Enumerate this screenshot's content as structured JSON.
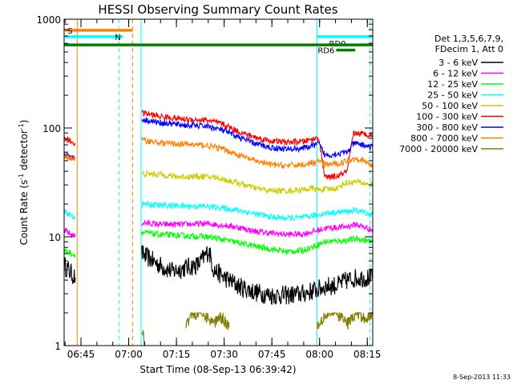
{
  "chart_data": {
    "type": "line",
    "title": "HESSI Observing Summary Count Rates",
    "xlabel": "Start Time (08-Sep-13 06:39:42)",
    "ylabel_main": "Count Rate (s",
    "ylabel_sup1": "-1",
    "ylabel_mid": " detector",
    "ylabel_sup2": "-1",
    "ylabel_end": ")",
    "yscale": "log",
    "ylim": [
      1,
      1000
    ],
    "xlim_minutes": [
      0,
      97
    ],
    "xticks": [
      {
        "m": 5.3,
        "label": "06:45"
      },
      {
        "m": 20.3,
        "label": "07:00"
      },
      {
        "m": 35.3,
        "label": "07:15"
      },
      {
        "m": 50.3,
        "label": "07:30"
      },
      {
        "m": 65.3,
        "label": "07:45"
      },
      {
        "m": 80.3,
        "label": "08:00"
      },
      {
        "m": 95.3,
        "label": "08:15"
      }
    ],
    "yticks": [
      {
        "v": 1,
        "label": "1"
      },
      {
        "v": 10,
        "label": "10"
      },
      {
        "v": 100,
        "label": "100"
      },
      {
        "v": 1000,
        "label": "1000"
      }
    ],
    "legend": {
      "placement": "right",
      "header1": "Det 1,3,5,6,7,9,",
      "header2": "FDecim 1, Att 0"
    },
    "series": [
      {
        "name": "3 - 6 keV",
        "color": "#000000",
        "segments": [
          [
            [
              0,
              5.5
            ],
            [
              3.5,
              4.2
            ]
          ],
          [
            [
              24.4,
              7
            ],
            [
              30,
              5.5
            ],
            [
              34,
              4.8
            ],
            [
              38,
              5.2
            ],
            [
              42,
              5.5
            ],
            [
              44,
              6.5
            ],
            [
              45.5,
              7.5
            ],
            [
              47,
              5
            ],
            [
              50,
              4.3
            ],
            [
              55,
              3.5
            ],
            [
              60,
              3.1
            ],
            [
              65,
              2.9
            ],
            [
              70,
              2.9
            ],
            [
              75,
              3.0
            ],
            [
              80,
              3.3
            ],
            [
              82,
              3.5
            ],
            [
              86,
              3.6
            ],
            [
              89,
              4.0
            ],
            [
              92,
              4.2
            ],
            [
              97,
              4.2
            ]
          ]
        ]
      },
      {
        "name": "6 - 12 keV",
        "color": "#ff00ff",
        "segments": [
          [
            [
              0,
              11.5
            ],
            [
              3.5,
              10
            ]
          ],
          [
            [
              24.4,
              13.5
            ],
            [
              30,
              13
            ],
            [
              38,
              13
            ],
            [
              45,
              13.2
            ],
            [
              50,
              12.8
            ],
            [
              55,
              12.2
            ],
            [
              60,
              11.2
            ],
            [
              65,
              10.8
            ],
            [
              70,
              10.5
            ],
            [
              75,
              10.6
            ],
            [
              80,
              11.5
            ],
            [
              82,
              12
            ],
            [
              88,
              12.3
            ],
            [
              92,
              13
            ],
            [
              97,
              11.5
            ]
          ]
        ]
      },
      {
        "name": "12 - 25 keV",
        "color": "#00ff00",
        "segments": [
          [
            [
              0,
              7.5
            ],
            [
              3.5,
              6.8
            ]
          ],
          [
            [
              24.4,
              11
            ],
            [
              30,
              10.5
            ],
            [
              38,
              10.2
            ],
            [
              45,
              10
            ],
            [
              50,
              9.4
            ],
            [
              55,
              8.8
            ],
            [
              60,
              8.2
            ],
            [
              65,
              7.7
            ],
            [
              70,
              7.3
            ],
            [
              75,
              7.5
            ],
            [
              80,
              8.5
            ],
            [
              82,
              9
            ],
            [
              88,
              9.2
            ],
            [
              92,
              9.6
            ],
            [
              97,
              9
            ]
          ]
        ]
      },
      {
        "name": "25 - 50 keV",
        "color": "#00ffff",
        "segments": [
          [
            [
              0,
              17
            ],
            [
              3.5,
              15
            ]
          ],
          [
            [
              24.4,
              20
            ],
            [
              30,
              19.5
            ],
            [
              38,
              19.2
            ],
            [
              45,
              19
            ],
            [
              50,
              18.3
            ],
            [
              55,
              17.5
            ],
            [
              60,
              16.3
            ],
            [
              65,
              15.2
            ],
            [
              70,
              14.8
            ],
            [
              75,
              15
            ],
            [
              80,
              16
            ],
            [
              82,
              16.5
            ],
            [
              88,
              17
            ],
            [
              92,
              17.5
            ],
            [
              97,
              16
            ]
          ]
        ]
      },
      {
        "name": "50 - 100 keV",
        "color": "#cccc00",
        "segments": [
          [
            [
              24.4,
              38
            ],
            [
              30,
              37.5
            ],
            [
              36,
              35.5
            ],
            [
              42,
              36
            ],
            [
              48,
              35
            ],
            [
              55,
              31
            ],
            [
              60,
              28
            ],
            [
              65,
              26.5
            ],
            [
              70,
              26.5
            ],
            [
              75,
              27
            ],
            [
              78,
              28
            ],
            [
              80,
              27
            ],
            [
              83,
              27.5
            ],
            [
              86,
              28
            ],
            [
              88,
              31
            ],
            [
              92,
              32
            ],
            [
              97,
              30
            ]
          ]
        ]
      },
      {
        "name": "100 - 300 keV",
        "color": "#ff0000",
        "segments": [
          [
            [
              0,
              80
            ],
            [
              3.5,
              72
            ]
          ],
          [
            [
              24.4,
              138
            ],
            [
              30,
              128
            ],
            [
              38,
              120
            ],
            [
              45,
              118
            ],
            [
              50,
              108
            ],
            [
              55,
              92
            ],
            [
              60,
              82
            ],
            [
              65,
              76
            ],
            [
              70,
              74
            ],
            [
              75,
              75
            ],
            [
              79,
              80
            ],
            [
              80,
              82
            ],
            [
              82,
              35
            ],
            [
              86,
              36
            ],
            [
              89,
              40
            ],
            [
              91,
              90
            ],
            [
              94,
              88
            ],
            [
              97,
              86
            ]
          ]
        ]
      },
      {
        "name": "300 - 800 keV",
        "color": "#0000ff",
        "segments": [
          [
            [
              0,
              58
            ],
            [
              3.5,
              52
            ]
          ],
          [
            [
              24.4,
              120
            ],
            [
              30,
              112
            ],
            [
              38,
              106
            ],
            [
              45,
              104
            ],
            [
              50,
              95
            ],
            [
              55,
              82
            ],
            [
              60,
              72
            ],
            [
              65,
              66
            ],
            [
              70,
              64
            ],
            [
              75,
              65
            ],
            [
              79,
              70
            ],
            [
              80,
              72
            ],
            [
              82,
              56
            ],
            [
              86,
              58
            ],
            [
              89,
              60
            ],
            [
              91,
              72
            ],
            [
              94,
              70
            ],
            [
              97,
              66
            ]
          ]
        ]
      },
      {
        "name": "800 - 7000 keV",
        "color": "#ff8000",
        "segments": [
          [
            [
              0,
              55
            ],
            [
              3.5,
              52
            ]
          ],
          [
            [
              24.4,
              78
            ],
            [
              30,
              73
            ],
            [
              38,
              71
            ],
            [
              45,
              69
            ],
            [
              50,
              64
            ],
            [
              55,
              56
            ],
            [
              60,
              50
            ],
            [
              65,
              46
            ],
            [
              70,
              45
            ],
            [
              75,
              46
            ],
            [
              79,
              48
            ],
            [
              80,
              50
            ],
            [
              82,
              46
            ],
            [
              86,
              47
            ],
            [
              89,
              50
            ],
            [
              92,
              53
            ],
            [
              94,
              50
            ],
            [
              97,
              45
            ]
          ]
        ]
      },
      {
        "name": "7000 - 20000 keV",
        "color": "#808000",
        "segments": [
          [
            [
              24.4,
              1.4
            ],
            [
              25.5,
              1.0
            ]
          ],
          [
            [
              38.3,
              1.6
            ],
            [
              40,
              1.95
            ],
            [
              44,
              1.95
            ],
            [
              47,
              1.6
            ],
            [
              49,
              1.9
            ],
            [
              52,
              1.5
            ]
          ],
          [
            [
              79.5,
              1.5
            ],
            [
              82,
              1.95
            ],
            [
              86,
              1.95
            ],
            [
              89,
              1.6
            ],
            [
              92,
              1.95
            ],
            [
              95,
              1.8
            ],
            [
              97,
              1.95
            ]
          ]
        ]
      }
    ],
    "flags": [
      {
        "code": "S",
        "label": "S",
        "color": "#ff8000",
        "m0": 0.3,
        "m1": 21.5,
        "y": 790
      },
      {
        "code": "N",
        "label": "N",
        "color": "#00ffff",
        "m0": 0.3,
        "m1": 18.5,
        "y": 690
      },
      {
        "code": "RD0",
        "label": "RD0",
        "color": "#00ffff",
        "m0": 79.5,
        "m1": 97,
        "y": 690
      },
      {
        "code": "RD6",
        "label": "RD6",
        "color": "#008000",
        "m0": 85.5,
        "m1": 91.5,
        "y": 520
      },
      {
        "code": "SAA",
        "label": "",
        "color": "#008000",
        "m0": 0,
        "m1": 97,
        "y": 580
      }
    ],
    "markers": [
      {
        "m": 4.1,
        "color": "#ff8000",
        "dashed": false
      },
      {
        "m": 17.2,
        "color": "#00ffff",
        "dashed": true
      },
      {
        "m": 21.5,
        "color": "#ff8000",
        "dashed": true
      },
      {
        "m": 24.2,
        "color": "#00ffff",
        "dashed": false
      },
      {
        "m": 79.5,
        "color": "#00ffff",
        "dashed": false
      },
      {
        "m": 96.2,
        "color": "#00ffff",
        "dashed": true
      }
    ],
    "timestamp": "8-Sep-2013 11:33"
  }
}
